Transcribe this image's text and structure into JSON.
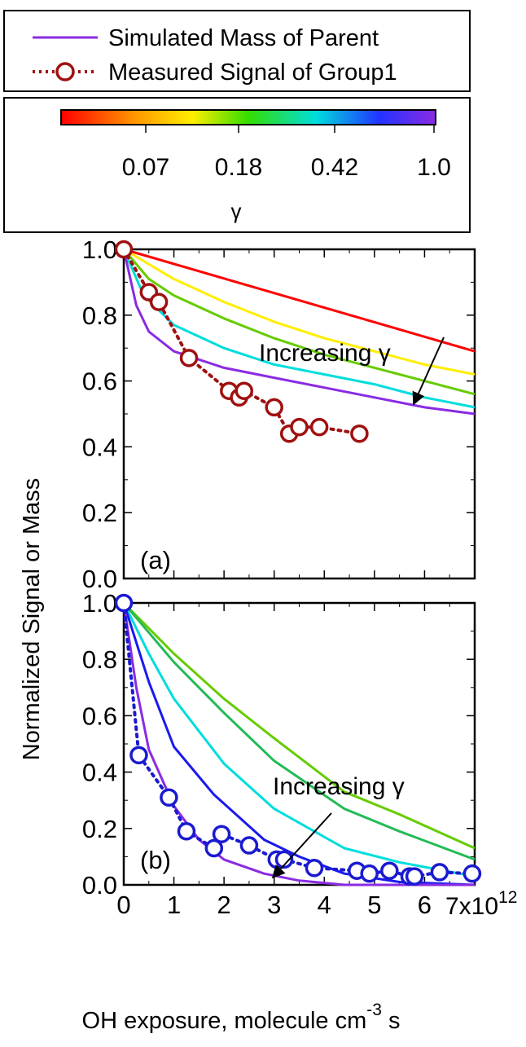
{
  "legend": {
    "items": [
      {
        "label": "Simulated Mass of Parent",
        "color": "#8a2be2",
        "style": "solid"
      },
      {
        "label": "Measured Signal of Group1",
        "color": "#a01010",
        "style": "dotted-circle"
      }
    ]
  },
  "colorbar": {
    "ticks": [
      "0.07",
      "0.18",
      "0.42",
      "1.0"
    ],
    "label": "γ"
  },
  "ylabel": "Normalized Signal or Mass",
  "xlabel_main": "OH exposure, molecule cm",
  "xlabel_exp": "-3",
  "xlabel_end": "s",
  "x_multiplier_text": "7x10",
  "x_multiplier_exp": "12",
  "chart_data": [
    {
      "type": "line",
      "panel_label": "(a)",
      "annotation": "Increasing γ",
      "xlim": [
        0,
        7
      ],
      "ylim": [
        0,
        1.0
      ],
      "x_ticks": [
        0,
        1,
        2,
        3,
        4,
        5,
        6
      ],
      "y_ticks": [
        "0.0",
        "0.2",
        "0.4",
        "0.6",
        "0.8",
        "1.0"
      ],
      "series": [
        {
          "color": "#ff0000",
          "x": [
            0,
            7
          ],
          "y": [
            1.0,
            0.69
          ]
        },
        {
          "color": "#ffee00",
          "x": [
            0,
            1,
            2,
            3,
            4,
            5,
            6,
            7
          ],
          "y": [
            1.0,
            0.91,
            0.84,
            0.78,
            0.73,
            0.69,
            0.65,
            0.62
          ]
        },
        {
          "color": "#66cc00",
          "x": [
            0,
            0.5,
            1,
            2,
            3,
            4,
            5,
            6,
            7
          ],
          "y": [
            1.0,
            0.91,
            0.86,
            0.79,
            0.73,
            0.68,
            0.64,
            0.6,
            0.56
          ]
        },
        {
          "color": "#00dddd",
          "x": [
            0,
            0.4,
            1,
            2,
            3,
            4,
            5,
            6,
            7
          ],
          "y": [
            1.0,
            0.86,
            0.77,
            0.7,
            0.65,
            0.62,
            0.59,
            0.55,
            0.52
          ]
        },
        {
          "color": "#8a2be2",
          "x": [
            0,
            0.25,
            0.5,
            1,
            2,
            3,
            4,
            5,
            6,
            7
          ],
          "y": [
            1.0,
            0.83,
            0.75,
            0.69,
            0.64,
            0.61,
            0.58,
            0.55,
            0.52,
            0.5
          ]
        }
      ],
      "measured": {
        "color": "#a01010",
        "x": [
          0,
          0.5,
          0.7,
          1.3,
          2.1,
          2.3,
          2.4,
          3.0,
          3.3,
          3.5,
          3.9,
          4.7
        ],
        "y": [
          1.0,
          0.87,
          0.84,
          0.67,
          0.57,
          0.55,
          0.57,
          0.52,
          0.44,
          0.46,
          0.46,
          0.44
        ]
      }
    },
    {
      "type": "line",
      "panel_label": "(b)",
      "annotation": "Increasing γ",
      "xlim": [
        0,
        7
      ],
      "ylim": [
        0,
        1.0
      ],
      "x_ticks": [
        0,
        1,
        2,
        3,
        4,
        5,
        6
      ],
      "y_ticks": [
        "0.0",
        "0.2",
        "0.4",
        "0.6",
        "0.8",
        "1.0"
      ],
      "series": [
        {
          "color": "#66cc00",
          "x": [
            0,
            1,
            2,
            3,
            4.4,
            5.5,
            7
          ],
          "y": [
            1.0,
            0.82,
            0.66,
            0.52,
            0.33,
            0.25,
            0.13
          ]
        },
        {
          "color": "#22bb55",
          "x": [
            0,
            1,
            2,
            3,
            4.4,
            5.5,
            7
          ],
          "y": [
            1.0,
            0.79,
            0.61,
            0.44,
            0.27,
            0.19,
            0.09
          ]
        },
        {
          "color": "#00dddd",
          "x": [
            0,
            0.5,
            1,
            2,
            3,
            4.4,
            5.5,
            7
          ],
          "y": [
            1.0,
            0.82,
            0.66,
            0.43,
            0.27,
            0.13,
            0.08,
            0.03
          ]
        },
        {
          "color": "#1a1aee",
          "x": [
            0,
            0.5,
            1,
            1.8,
            2.8,
            3.5,
            4.4,
            5.5,
            7
          ],
          "y": [
            1.0,
            0.72,
            0.49,
            0.32,
            0.16,
            0.1,
            0.04,
            0.01,
            0.0
          ]
        },
        {
          "color": "#8a2be2",
          "x": [
            0,
            0.25,
            0.5,
            1,
            1.5,
            2,
            2.8,
            3.5,
            4.4,
            7
          ],
          "y": [
            1.0,
            0.7,
            0.48,
            0.28,
            0.16,
            0.09,
            0.04,
            0.015,
            0.0,
            0.0
          ]
        }
      ],
      "measured": {
        "color": "#1a1ad0",
        "x": [
          0,
          0.3,
          0.9,
          1.25,
          1.8,
          1.95,
          2.5,
          3.05,
          3.2,
          3.8,
          4.65,
          4.9,
          5.3,
          5.7,
          5.8,
          6.3,
          6.95
        ],
        "y": [
          1.0,
          0.46,
          0.31,
          0.19,
          0.13,
          0.18,
          0.14,
          0.09,
          0.09,
          0.06,
          0.05,
          0.04,
          0.05,
          0.03,
          0.03,
          0.045,
          0.04
        ]
      }
    }
  ]
}
